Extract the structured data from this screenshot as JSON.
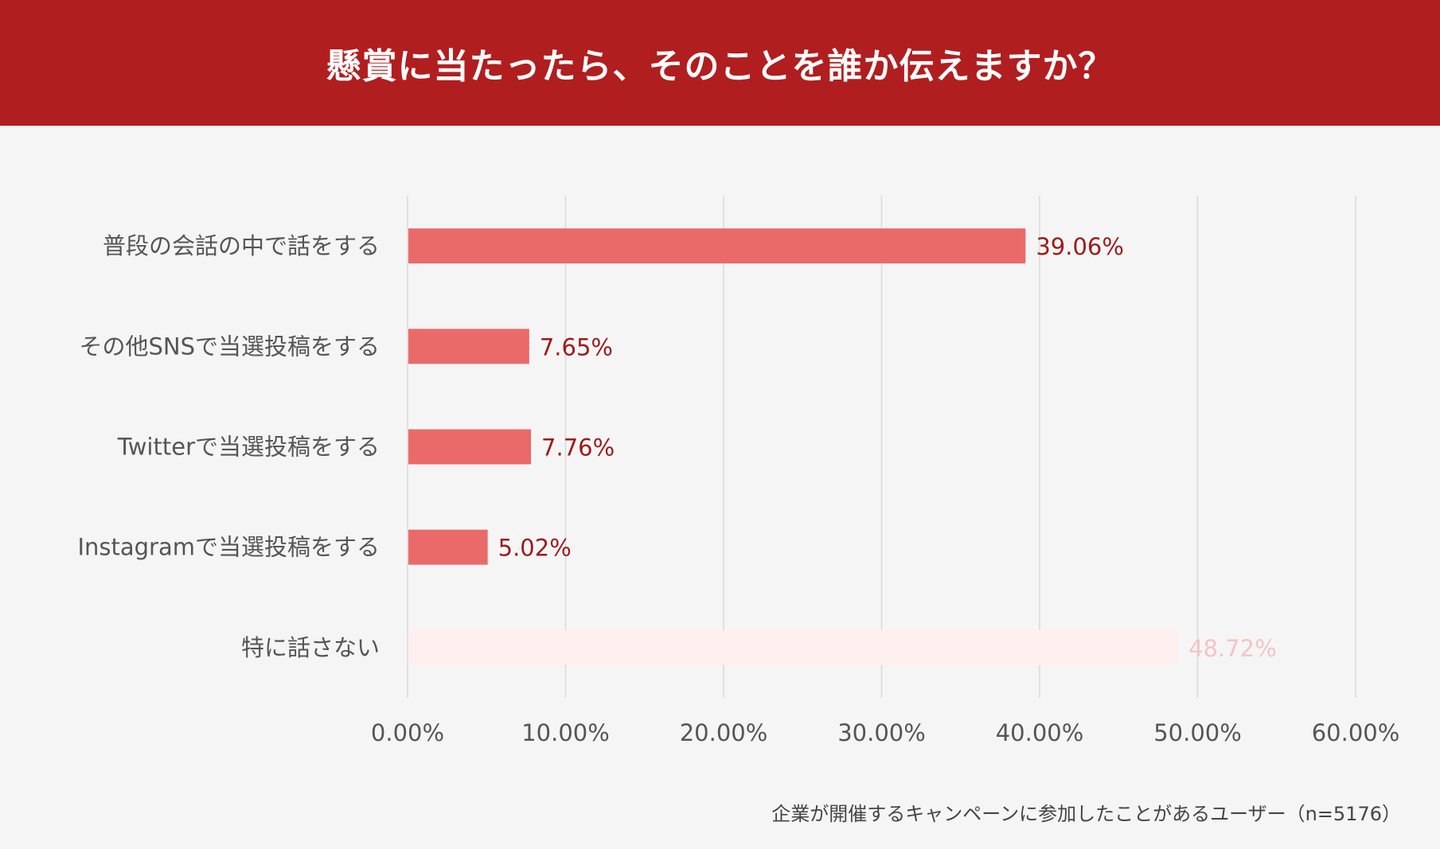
{
  "header": {
    "title": "懸賞に当たったら、そのことを誰か伝えますか？"
  },
  "footnote": "企業が開催するキャンペーンに参加したことがあるユーザー（n=5176）",
  "colors": {
    "header": "#b11e1f",
    "bar": "#ea6a6a",
    "value_label": "#9b1c1c",
    "muted_bar": "#fdf0ef",
    "muted_label": "#f4c4c4",
    "grid": "#d9d9d9"
  },
  "chart_data": {
    "type": "bar",
    "orientation": "horizontal",
    "categories": [
      "普段の会話の中で話をする",
      "その他SNSで当選投稿をする",
      "Twitterで当選投稿をする",
      "Instagramで当選投稿をする",
      "特に話さない"
    ],
    "values": [
      39.06,
      7.65,
      7.76,
      5.02,
      48.72
    ],
    "value_labels": [
      "39.06%",
      "7.65%",
      "7.76%",
      "5.02%",
      "48.72%"
    ],
    "muted": [
      false,
      false,
      false,
      false,
      true
    ],
    "xlim": [
      0,
      60
    ],
    "xticks": [
      0,
      10,
      20,
      30,
      40,
      50,
      60
    ],
    "xtick_labels": [
      "0.00%",
      "10.00%",
      "20.00%",
      "30.00%",
      "40.00%",
      "50.00%",
      "60.00%"
    ],
    "grid": "vertical",
    "legend": "none"
  }
}
